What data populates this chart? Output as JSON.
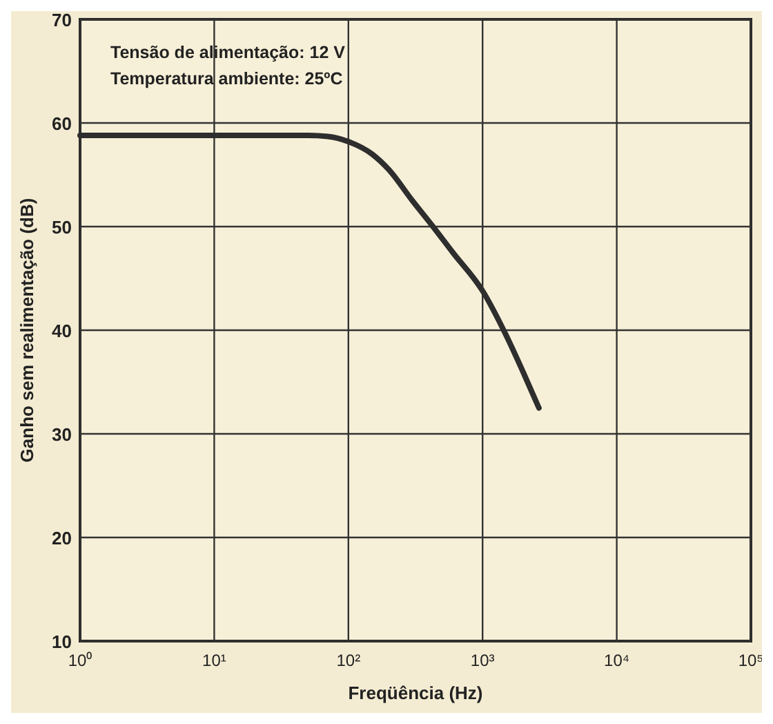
{
  "chart_data": {
    "type": "line",
    "xlabel": "Freqüência (Hz)",
    "ylabel": "Ganho sem realimentação (dB)",
    "annotations": [
      "Tensão de alimentação: 12 V",
      "Temperatura ambiente: 25ºC"
    ],
    "x": [
      1,
      5,
      20,
      50,
      70,
      100,
      150,
      200,
      300,
      427,
      600,
      1000,
      1500,
      2000,
      2630
    ],
    "series": [
      {
        "color": "#2e2e2e",
        "values": [
          58.8,
          58.8,
          58.8,
          58.8,
          58.7,
          58.2,
          57,
          55.5,
          52.5,
          50,
          47.5,
          43.8,
          39.5,
          36,
          32.5
        ]
      }
    ],
    "log": "x",
    "xlim": [
      1,
      100000
    ],
    "ylim": [
      10,
      70
    ],
    "xticks": [
      {
        "value": 1,
        "label": "10⁰"
      },
      {
        "value": 10,
        "label": "10¹"
      },
      {
        "value": 100,
        "label": "10²"
      },
      {
        "value": 1000,
        "label": "10³"
      },
      {
        "value": 10000,
        "label": "10⁴"
      },
      {
        "value": 100000,
        "label": "10⁵"
      }
    ],
    "yticks": [
      10,
      20,
      30,
      40,
      50,
      60,
      70
    ],
    "grid": true,
    "marker": "none",
    "line_style": "solid"
  }
}
